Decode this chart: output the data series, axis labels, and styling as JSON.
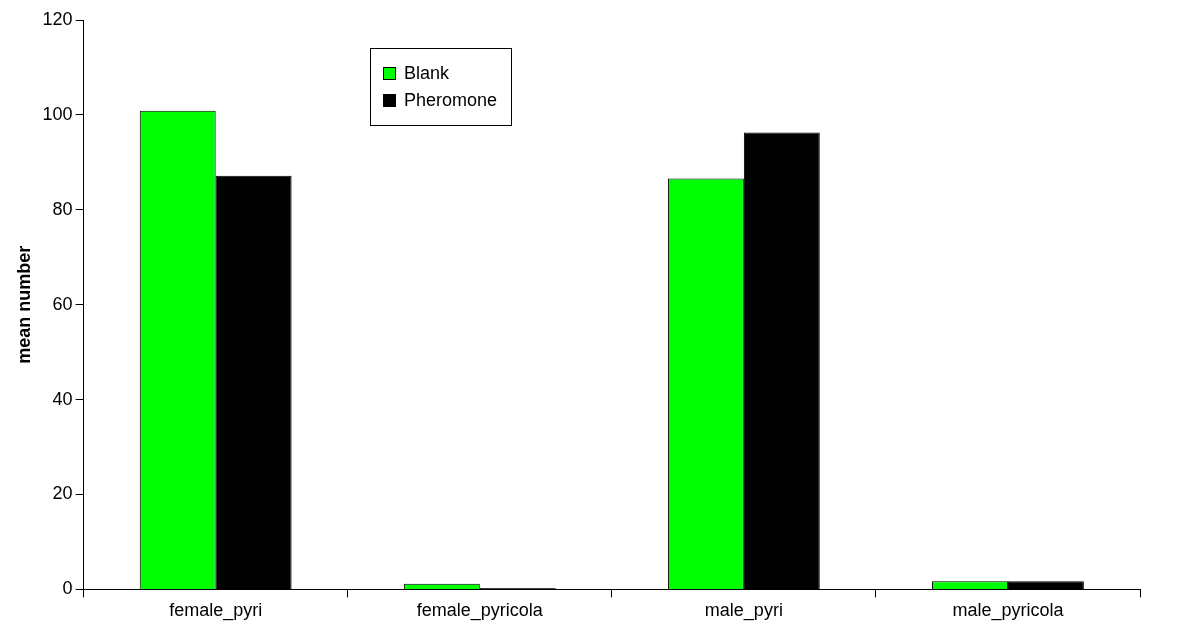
{
  "chart_data": {
    "type": "bar",
    "ylabel": "mean number",
    "categories": [
      "female_pyri",
      "female_pyricola",
      "male_pyri",
      "male_pyricola"
    ],
    "series": [
      {
        "name": "Blank",
        "color": "#00ff00",
        "values": [
          100.9,
          1.2,
          86.6,
          1.7
        ]
      },
      {
        "name": "Pheromone",
        "color": "#000000",
        "values": [
          87.2,
          0.3,
          96.3,
          1.7
        ]
      }
    ],
    "ylim": [
      0,
      120
    ],
    "yticks": [
      0,
      20,
      40,
      60,
      80,
      100,
      120
    ],
    "grid": false,
    "legend": "top left"
  }
}
